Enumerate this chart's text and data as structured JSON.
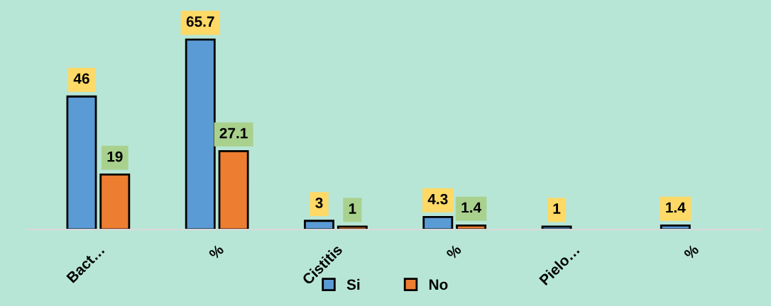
{
  "chart_data": {
    "type": "bar",
    "categories": [
      "Bact…",
      "%",
      "Cistitis",
      "%",
      "Pielo…",
      "%"
    ],
    "series": [
      {
        "name": "Si",
        "color": "#5b9bd5",
        "values": [
          46,
          65.7,
          3,
          4.3,
          1,
          1.4
        ]
      },
      {
        "name": "No",
        "color": "#ed7d31",
        "values": [
          19,
          27.1,
          1,
          1.4,
          null,
          null
        ]
      }
    ],
    "data_labels": true,
    "legend": "bottom",
    "grid": false
  }
}
